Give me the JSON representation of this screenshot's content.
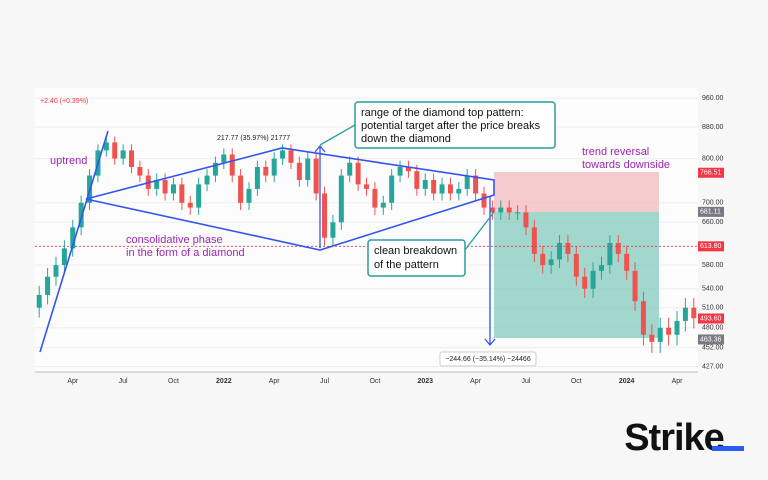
{
  "chart_data": {
    "type": "candlestick",
    "categories": [
      null,
      null,
      null,
      null,
      "Apr",
      null,
      null,
      null,
      null,
      null,
      "Jul",
      null,
      null,
      null,
      null,
      null,
      "Oct",
      null,
      null,
      null,
      null,
      null,
      "2022",
      null,
      null,
      null,
      null,
      null,
      "Apr",
      null,
      null,
      null,
      null,
      null,
      "Jul",
      null,
      null,
      null,
      null,
      null,
      "Oct",
      null,
      null,
      null,
      null,
      null,
      "2023",
      null,
      null,
      null,
      null,
      null,
      "Apr",
      null,
      null,
      null,
      null,
      null,
      "Jul",
      null,
      null,
      null,
      null,
      null,
      "Oct",
      null,
      null,
      null,
      null,
      null,
      "2024",
      null,
      null,
      null,
      null,
      null,
      "Apr",
      null,
      null
    ],
    "open": [
      510,
      530,
      560,
      580,
      610,
      650,
      700,
      760,
      820,
      840,
      800,
      820,
      780,
      760,
      730,
      750,
      720,
      740,
      700,
      690,
      740,
      760,
      790,
      810,
      760,
      700,
      730,
      780,
      760,
      800,
      820,
      790,
      750,
      800,
      720,
      630,
      660,
      760,
      790,
      740,
      730,
      690,
      700,
      760,
      780,
      770,
      730,
      750,
      720,
      740,
      720,
      730,
      760,
      720,
      690,
      680,
      690,
      680,
      680,
      650,
      600,
      580,
      590,
      620,
      600,
      560,
      540,
      570,
      580,
      620,
      600,
      570,
      520,
      470,
      460,
      480,
      470,
      490,
      510
    ],
    "high": [
      545,
      575,
      595,
      625,
      665,
      715,
      775,
      835,
      855,
      855,
      835,
      835,
      795,
      775,
      765,
      765,
      755,
      755,
      715,
      755,
      775,
      805,
      825,
      825,
      775,
      745,
      795,
      795,
      815,
      835,
      835,
      805,
      815,
      815,
      735,
      675,
      775,
      805,
      805,
      755,
      745,
      715,
      775,
      795,
      795,
      785,
      765,
      765,
      755,
      755,
      745,
      775,
      775,
      735,
      705,
      705,
      705,
      695,
      695,
      665,
      615,
      605,
      635,
      635,
      615,
      575,
      585,
      595,
      635,
      635,
      615,
      585,
      535,
      485,
      495,
      495,
      505,
      525,
      525
    ],
    "low": [
      495,
      515,
      545,
      565,
      595,
      635,
      685,
      745,
      805,
      785,
      785,
      765,
      745,
      715,
      715,
      705,
      705,
      685,
      675,
      675,
      725,
      745,
      775,
      745,
      685,
      685,
      715,
      745,
      745,
      785,
      775,
      735,
      735,
      705,
      615,
      615,
      645,
      745,
      725,
      715,
      675,
      675,
      685,
      745,
      755,
      715,
      715,
      705,
      705,
      705,
      705,
      715,
      705,
      675,
      665,
      665,
      665,
      665,
      635,
      585,
      565,
      565,
      575,
      585,
      545,
      525,
      525,
      555,
      565,
      585,
      555,
      505,
      455,
      445,
      445,
      455,
      455,
      475,
      479
    ],
    "close": [
      530,
      560,
      580,
      610,
      650,
      700,
      760,
      820,
      840,
      800,
      820,
      780,
      760,
      730,
      750,
      720,
      740,
      700,
      690,
      740,
      760,
      790,
      810,
      760,
      700,
      730,
      780,
      760,
      800,
      820,
      790,
      750,
      800,
      720,
      630,
      660,
      760,
      790,
      740,
      730,
      690,
      700,
      760,
      780,
      770,
      730,
      750,
      720,
      740,
      720,
      730,
      760,
      720,
      690,
      680,
      690,
      680,
      680,
      650,
      600,
      580,
      590,
      620,
      600,
      560,
      540,
      570,
      580,
      620,
      600,
      570,
      520,
      470,
      460,
      480,
      470,
      490,
      510,
      494
    ],
    "up_color": "#26a69a",
    "down_color": "#ef5350",
    "log_scale": true,
    "ylim": [
      420,
      990
    ],
    "yticks": [
      {
        "value": 960,
        "label": "960.00"
      },
      {
        "value": 880,
        "label": "880.00"
      },
      {
        "value": 800,
        "label": "800.00"
      },
      {
        "value": 700,
        "label": "700.00"
      },
      {
        "value": 660,
        "label": "660.00"
      },
      {
        "value": 580,
        "label": "580.00"
      },
      {
        "value": 540,
        "label": "540.00"
      },
      {
        "value": 510,
        "label": "510.00"
      },
      {
        "value": 480,
        "label": "480.00"
      },
      {
        "value": 452,
        "label": "452.00"
      },
      {
        "value": 427,
        "label": "427.00"
      }
    ],
    "price_tags": [
      {
        "value": 766.51,
        "label": "766.51",
        "color": "#f23645"
      },
      {
        "value": 681.11,
        "label": "681.11",
        "color": "#787b86"
      },
      {
        "value": 613.8,
        "label": "613.80",
        "color": "#f23645"
      },
      {
        "value": 493.6,
        "label": "493.60",
        "color": "#f23645"
      },
      {
        "value": 463.36,
        "label": "463.36",
        "color": "#787b86"
      }
    ],
    "annotations": {
      "change": "+2.40 (+0.39%)",
      "uptrend": "uptrend",
      "consolidation": [
        "consolidative phase",
        "in the form of a diamond"
      ],
      "range_box": [
        "range of the diamond top pattern:",
        "potential target after the price breaks",
        "down the diamond"
      ],
      "reversal": [
        "trend reversal",
        "towards downside"
      ],
      "breakdown": [
        "clean breakdown",
        "of the pattern"
      ],
      "measure_up": "217.77 (35.97%) 21777",
      "measure_down": "−244.66 (−35.14%) −24466"
    }
  },
  "logo": "Strike"
}
